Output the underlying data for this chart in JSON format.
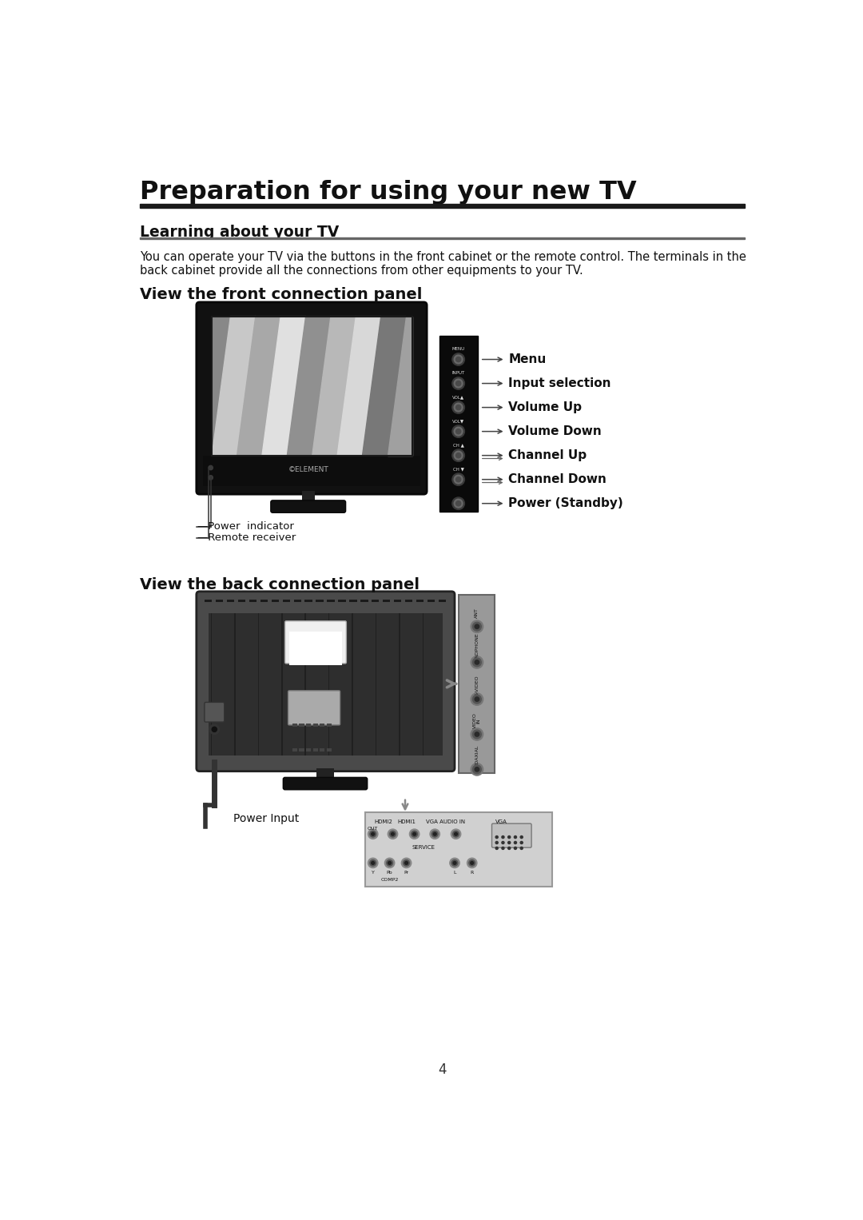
{
  "page_title": "Preparation for using your new TV",
  "section1_title": "Learning about your TV",
  "section1_body1": "You can operate your TV via the buttons in the front cabinet or the remote control. The terminals in the",
  "section1_body2": "back cabinet provide all the connections from other equipments to your TV.",
  "section2_title": "View the front connection panel",
  "section3_title": "View the back connection panel",
  "front_labels": [
    "Menu",
    "Input selection",
    "Volume Up",
    "Volume Down",
    "Channel Up",
    "Channel Down",
    "Power (Standby)"
  ],
  "front_btn_small": [
    "MENU",
    "INPUT",
    "VOL▲",
    "VOL▼",
    "CH ▲",
    "CH ▼",
    ""
  ],
  "bottom_labels": [
    "Power  indicator",
    "Remote receiver"
  ],
  "back_bottom_label": "Power Input",
  "page_number": "4",
  "bg_color": "#ffffff",
  "text_color": "#111111",
  "title_color": "#111111",
  "screen_colors": [
    "#c8c8c8",
    "#a8a8a8",
    "#e0e0e0",
    "#909090",
    "#b8b8b8",
    "#d8d8d8",
    "#787878",
    "#a0a0a0"
  ]
}
